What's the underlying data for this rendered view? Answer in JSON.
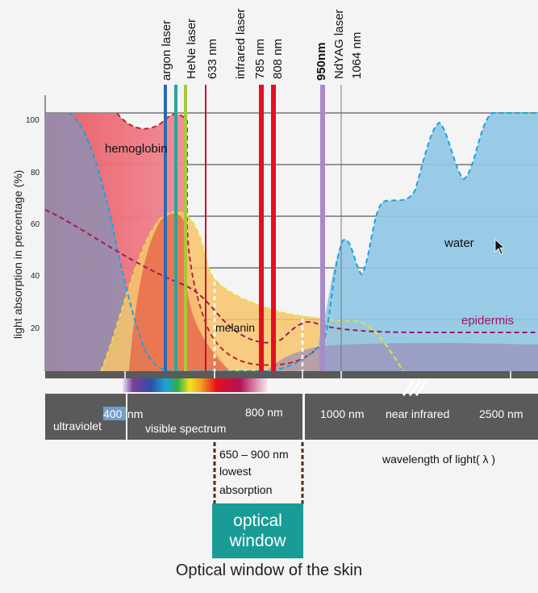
{
  "caption": "Optical window of the skin",
  "optical_window": {
    "line1": "optical",
    "line2": "window",
    "color": "#1a9c96"
  },
  "absorption_note": {
    "line1": "650 – 900 nm",
    "line2": "lowest",
    "line3": "absorption"
  },
  "y_axis": {
    "label": "light absorption in percentage (%)",
    "ticks": [
      "100",
      "80",
      "60",
      "40",
      "20"
    ]
  },
  "curves": {
    "hemoglobin": {
      "label": "hemoglobin",
      "color": "#e8555f"
    },
    "melanin": {
      "label": "melanin",
      "color": "#f7c46b"
    },
    "water": {
      "label": "water",
      "color": "#8fc7e6"
    },
    "epidermis": {
      "label": "epidermis",
      "color": "#a0195e"
    }
  },
  "lasers": [
    {
      "label": "argon laser",
      "color": "#2a6ab0"
    },
    {
      "label": "HeNe laser",
      "color": "#2aa59b"
    },
    {
      "label": "633 nm",
      "color": "#a8c83c"
    },
    {
      "label": "infrared laser",
      "color": "#c8102e"
    },
    {
      "label": "785 nm",
      "color": "#e3101d"
    },
    {
      "label": "808 nm",
      "color": "#e3101d"
    },
    {
      "label": "950nm",
      "color": "#a78ac7"
    },
    {
      "label": "NdYAG laser",
      "color": "#777777"
    },
    {
      "label": "1064 nm",
      "color": "#777777"
    }
  ],
  "wavelength_labels": {
    "w400": "400",
    "w400_unit": "nm",
    "w800": "800 nm",
    "w1000": "1000 nm",
    "w2500": "2500 nm"
  },
  "band_labels": {
    "ultraviolet": "ultraviolet",
    "visible": "visible spectrum",
    "near_infrared": "near infrared"
  },
  "x_axis": {
    "label": "wavelength of light( λ )"
  }
}
